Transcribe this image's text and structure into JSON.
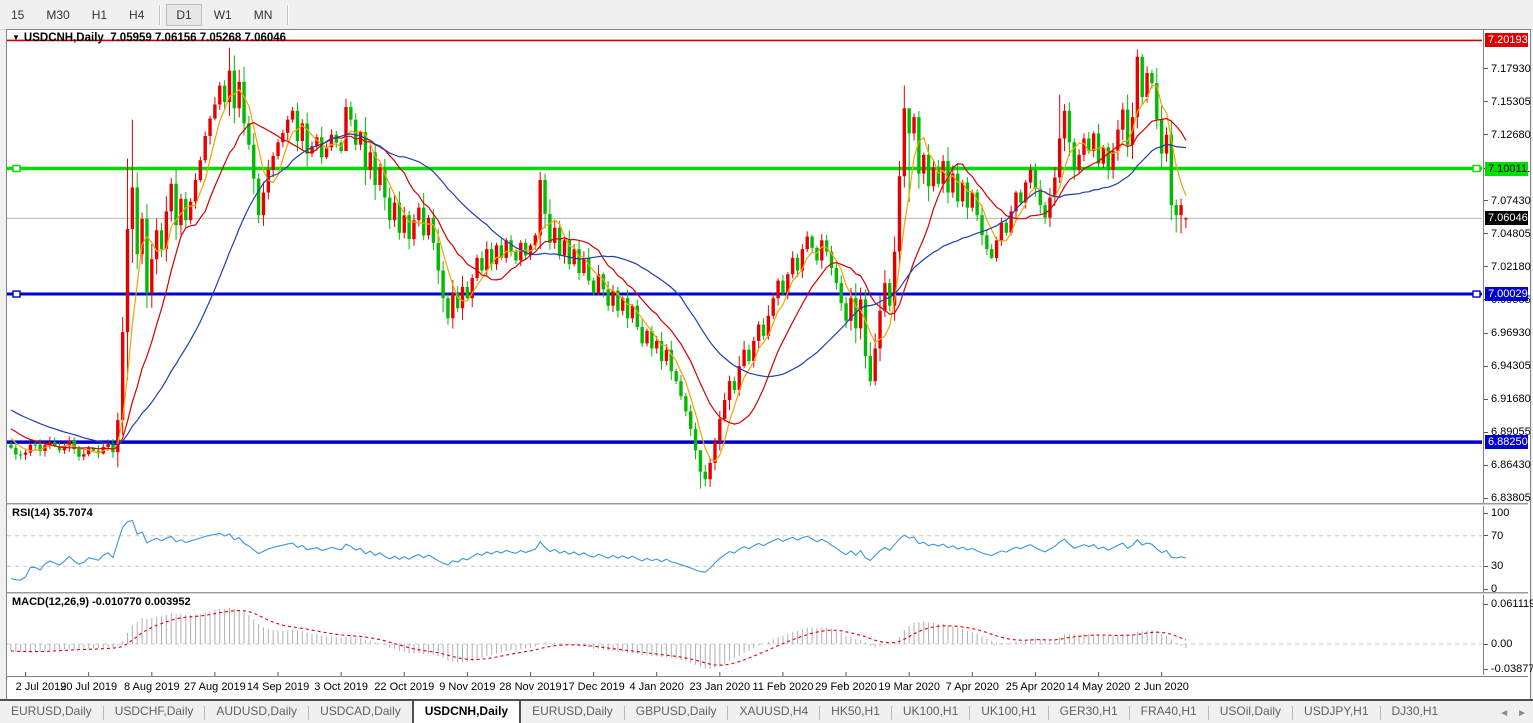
{
  "toolbar": {
    "timeframe_groups": [
      [
        "15",
        "M30",
        "H1",
        "H4"
      ],
      [
        "D1",
        "W1",
        "MN"
      ]
    ],
    "active_timeframe": "D1"
  },
  "title": {
    "symbol": "USDCNH,Daily",
    "ohlc": "7.05959 7.06156 7.05268 7.06046"
  },
  "price_axis": {
    "ticks": [
      "7.17930",
      "7.15305",
      "7.12680",
      "7.10011",
      "7.07430",
      "7.04805",
      "7.02180",
      "6.99555",
      "6.96930",
      "6.94305",
      "6.91680",
      "6.89055",
      "6.86430",
      "6.83805"
    ],
    "boxes": [
      {
        "value": "7.20193",
        "bg": "#dd0000",
        "fg": "#ffffff"
      },
      {
        "value": "7.10011",
        "bg": "#00dd00",
        "fg": "#000000"
      },
      {
        "value": "7.06046",
        "bg": "#000000",
        "fg": "#ffffff"
      },
      {
        "value": "7.00029",
        "bg": "#0000cc",
        "fg": "#ffffff"
      },
      {
        "value": "6.88250",
        "bg": "#0000cc",
        "fg": "#ffffff"
      }
    ]
  },
  "indicators": {
    "rsi": {
      "label": "RSI(14)",
      "value": "35.7074",
      "ticks": [
        "100",
        "70",
        "30",
        "0"
      ]
    },
    "macd": {
      "label": "MACD(12,26,9)",
      "values": "-0.010770 0.003952",
      "ticks": [
        "0.061119",
        "0.00",
        "-0.038777"
      ]
    }
  },
  "time_axis": {
    "labels": [
      "2 Jul 2019",
      "20 Jul 2019",
      "8 Aug 2019",
      "27 Aug 2019",
      "14 Sep 2019",
      "3 Oct 2019",
      "22 Oct 2019",
      "9 Nov 2019",
      "28 Nov 2019",
      "17 Dec 2019",
      "4 Jan 2020",
      "23 Jan 2020",
      "11 Feb 2020",
      "29 Feb 2020",
      "19 Mar 2020",
      "7 Apr 2020",
      "25 Apr 2020",
      "14 May 2020",
      "2 Jun 2020"
    ]
  },
  "tabs": {
    "items": [
      "EURUSD,Daily",
      "USDCHF,Daily",
      "AUDUSD,Daily",
      "USDCAD,Daily",
      "USDCNH,Daily",
      "EURUSD,Daily",
      "GBPUSD,Daily",
      "XAUUSD,H4",
      "HK50,H1",
      "UK100,H1",
      "UK100,H1",
      "GER30,H1",
      "FRA40,H1",
      "USOil,Daily",
      "USDJPY,H1",
      "DJ30,H1"
    ],
    "active_index": 4,
    "scroll_left": "◄",
    "scroll_right": "►"
  },
  "chart_data": {
    "type": "candlestick",
    "symbol": "USDCNH",
    "timeframe": "Daily",
    "current_price": 7.06046,
    "last_candle_ohlc": {
      "open": 7.05959,
      "high": 7.06156,
      "low": 7.05268,
      "close": 7.06046
    },
    "ylim": [
      6.8357,
      7.2047
    ],
    "num_candles": 243,
    "hlines": [
      {
        "price": 7.20193,
        "color": "#cc0000",
        "width": 1.6,
        "handles": false
      },
      {
        "price": 7.10011,
        "color": "#00dd00",
        "width": 3.5,
        "handles": true
      },
      {
        "price": 7.00029,
        "color": "#0000cc",
        "width": 3.0,
        "handles": true
      },
      {
        "price": 6.8825,
        "color": "#0000cc",
        "width": 3.5,
        "handles": false
      }
    ],
    "rsi_period": 14,
    "macd_params": [
      12,
      26,
      9
    ],
    "ma_periods": [
      5,
      13,
      30
    ],
    "rsi_range": [
      0,
      100
    ],
    "macd_range": [
      0.061119,
      0.0,
      -0.038777
    ],
    "close_anchors": [
      [
        0,
        6.878
      ],
      [
        2,
        6.8725
      ],
      [
        4,
        6.8805
      ],
      [
        6,
        6.8755
      ],
      [
        8,
        6.8825
      ],
      [
        10,
        6.876
      ],
      [
        12,
        6.8835
      ],
      [
        14,
        6.871
      ],
      [
        16,
        6.8775
      ],
      [
        18,
        6.8735
      ],
      [
        20,
        6.8815
      ],
      [
        21,
        6.8745
      ],
      [
        22,
        6.9
      ],
      [
        23,
        6.97
      ],
      [
        24,
        7.052
      ],
      [
        25,
        7.085
      ],
      [
        26,
        7.032
      ],
      [
        27,
        7.06
      ],
      [
        28,
        7.001
      ],
      [
        29,
        7.028
      ],
      [
        30,
        7.051
      ],
      [
        31,
        7.036
      ],
      [
        32,
        7.066
      ],
      [
        33,
        7.088
      ],
      [
        34,
        7.055
      ],
      [
        35,
        7.076
      ],
      [
        36,
        7.059
      ],
      [
        38,
        7.091
      ],
      [
        40,
        7.126
      ],
      [
        42,
        7.151
      ],
      [
        43,
        7.166
      ],
      [
        44,
        7.153
      ],
      [
        45,
        7.178
      ],
      [
        46,
        7.148
      ],
      [
        47,
        7.169
      ],
      [
        48,
        7.136
      ],
      [
        49,
        7.119
      ],
      [
        50,
        7.092
      ],
      [
        51,
        7.063
      ],
      [
        52,
        7.081
      ],
      [
        53,
        7.099
      ],
      [
        55,
        7.121
      ],
      [
        57,
        7.139
      ],
      [
        58,
        7.146
      ],
      [
        59,
        7.122
      ],
      [
        60,
        7.136
      ],
      [
        61,
        7.112
      ],
      [
        63,
        7.125
      ],
      [
        64,
        7.109
      ],
      [
        66,
        7.127
      ],
      [
        68,
        7.114
      ],
      [
        69,
        7.149
      ],
      [
        70,
        7.139
      ],
      [
        71,
        7.119
      ],
      [
        72,
        7.129
      ],
      [
        73,
        7.099
      ],
      [
        74,
        7.113
      ],
      [
        75,
        7.087
      ],
      [
        76,
        7.101
      ],
      [
        77,
        7.077
      ],
      [
        78,
        7.059
      ],
      [
        79,
        7.073
      ],
      [
        80,
        7.049
      ],
      [
        81,
        7.063
      ],
      [
        82,
        7.044
      ],
      [
        83,
        7.059
      ],
      [
        84,
        7.069
      ],
      [
        85,
        7.047
      ],
      [
        86,
        7.061
      ],
      [
        87,
        7.041
      ],
      [
        88,
        7.019
      ],
      [
        89,
        6.997
      ],
      [
        90,
        6.981
      ],
      [
        91,
        7.001
      ],
      [
        92,
        6.989
      ],
      [
        93,
        7.006
      ],
      [
        94,
        6.997
      ],
      [
        95,
        7.013
      ],
      [
        96,
        7.029
      ],
      [
        97,
        7.019
      ],
      [
        98,
        7.036
      ],
      [
        99,
        7.024
      ],
      [
        100,
        7.039
      ],
      [
        101,
        7.029
      ],
      [
        102,
        7.043
      ],
      [
        103,
        7.034
      ],
      [
        104,
        7.027
      ],
      [
        105,
        7.041
      ],
      [
        106,
        7.031
      ],
      [
        107,
        7.039
      ],
      [
        108,
        7.047
      ],
      [
        109,
        7.091
      ],
      [
        110,
        7.064
      ],
      [
        111,
        7.041
      ],
      [
        112,
        7.053
      ],
      [
        113,
        7.031
      ],
      [
        114,
        7.043
      ],
      [
        115,
        7.024
      ],
      [
        116,
        7.036
      ],
      [
        117,
        7.017
      ],
      [
        118,
        7.029
      ],
      [
        119,
        7.011
      ],
      [
        120,
        7.001
      ],
      [
        121,
        7.016
      ],
      [
        122,
        7.004
      ],
      [
        123,
        6.991
      ],
      [
        124,
        7.003
      ],
      [
        125,
        6.987
      ],
      [
        126,
        6.997
      ],
      [
        127,
        6.981
      ],
      [
        128,
        6.991
      ],
      [
        129,
        6.974
      ],
      [
        130,
        6.961
      ],
      [
        131,
        6.971
      ],
      [
        132,
        6.957
      ],
      [
        133,
        6.963
      ],
      [
        134,
        6.947
      ],
      [
        135,
        6.956
      ],
      [
        136,
        6.939
      ],
      [
        137,
        6.931
      ],
      [
        138,
        6.919
      ],
      [
        139,
        6.907
      ],
      [
        140,
        6.893
      ],
      [
        141,
        6.876
      ],
      [
        142,
        6.859
      ],
      [
        143,
        6.853
      ],
      [
        144,
        6.866
      ],
      [
        145,
        6.883
      ],
      [
        146,
        6.901
      ],
      [
        147,
        6.916
      ],
      [
        148,
        6.931
      ],
      [
        149,
        6.924
      ],
      [
        150,
        6.943
      ],
      [
        151,
        6.956
      ],
      [
        152,
        6.947
      ],
      [
        153,
        6.963
      ],
      [
        154,
        6.976
      ],
      [
        155,
        6.967
      ],
      [
        156,
        6.983
      ],
      [
        157,
        6.997
      ],
      [
        158,
        7.011
      ],
      [
        159,
        7.001
      ],
      [
        160,
        7.016
      ],
      [
        161,
        7.029
      ],
      [
        162,
        7.019
      ],
      [
        163,
        7.036
      ],
      [
        164,
        7.046
      ],
      [
        165,
        7.037
      ],
      [
        166,
        7.027
      ],
      [
        167,
        7.043
      ],
      [
        168,
        7.034
      ],
      [
        169,
        7.021
      ],
      [
        170,
        7.009
      ],
      [
        171,
        6.993
      ],
      [
        172,
        6.979
      ],
      [
        173,
        6.997
      ],
      [
        174,
        6.973
      ],
      [
        175,
        6.996
      ],
      [
        176,
        6.951
      ],
      [
        177,
        6.931
      ],
      [
        178,
        6.957
      ],
      [
        179,
        6.987
      ],
      [
        180,
        7.009
      ],
      [
        181,
        6.991
      ],
      [
        182,
        7.034
      ],
      [
        183,
        7.094
      ],
      [
        184,
        7.148
      ],
      [
        185,
        7.128
      ],
      [
        186,
        7.141
      ],
      [
        187,
        7.096
      ],
      [
        188,
        7.111
      ],
      [
        189,
        7.086
      ],
      [
        190,
        7.101
      ],
      [
        191,
        7.088
      ],
      [
        192,
        7.106
      ],
      [
        193,
        7.081
      ],
      [
        194,
        7.096
      ],
      [
        195,
        7.074
      ],
      [
        196,
        7.089
      ],
      [
        197,
        7.069
      ],
      [
        198,
        7.081
      ],
      [
        199,
        7.063
      ],
      [
        200,
        7.047
      ],
      [
        201,
        7.036
      ],
      [
        202,
        7.029
      ],
      [
        203,
        7.043
      ],
      [
        204,
        7.057
      ],
      [
        205,
        7.049
      ],
      [
        206,
        7.066
      ],
      [
        207,
        7.081
      ],
      [
        208,
        7.073
      ],
      [
        209,
        7.089
      ],
      [
        210,
        7.099
      ],
      [
        211,
        7.084
      ],
      [
        212,
        7.071
      ],
      [
        213,
        7.061
      ],
      [
        214,
        7.077
      ],
      [
        215,
        7.093
      ],
      [
        216,
        7.124
      ],
      [
        217,
        7.146
      ],
      [
        218,
        7.121
      ],
      [
        219,
        7.099
      ],
      [
        220,
        7.111
      ],
      [
        221,
        7.124
      ],
      [
        222,
        7.114
      ],
      [
        223,
        7.128
      ],
      [
        224,
        7.104
      ],
      [
        225,
        7.117
      ],
      [
        226,
        7.099
      ],
      [
        227,
        7.114
      ],
      [
        228,
        7.131
      ],
      [
        229,
        7.147
      ],
      [
        230,
        7.119
      ],
      [
        231,
        7.141
      ],
      [
        232,
        7.189
      ],
      [
        233,
        7.157
      ],
      [
        234,
        7.176
      ],
      [
        235,
        7.168
      ],
      [
        236,
        7.139
      ],
      [
        237,
        7.112
      ],
      [
        238,
        7.127
      ],
      [
        239,
        7.071
      ],
      [
        240,
        7.063
      ],
      [
        241,
        7.071
      ],
      [
        242,
        7.06046
      ]
    ],
    "wick_overrides": {
      "24": [
        7.108,
        6.932
      ],
      "25": [
        7.139,
        7.025
      ],
      "45": [
        7.1962,
        7.142
      ],
      "69": [
        7.1555,
        7.115
      ],
      "109": [
        7.0975,
        7.036
      ],
      "142": [
        6.868,
        6.8455
      ],
      "143": [
        6.8645,
        6.8472
      ],
      "184": [
        7.1662,
        7.085
      ],
      "185": [
        7.1472,
        7.0735
      ],
      "216": [
        7.1588,
        7.0885
      ],
      "232": [
        7.1948,
        7.132
      ],
      "233": [
        7.1915,
        7.1505
      ],
      "240": [
        7.0755,
        7.0492
      ],
      "241": [
        7.0762,
        7.0485
      ]
    },
    "colors": {
      "up": "#e60000",
      "down": "#00bb00",
      "ma_fast": "#f5a300",
      "ma_mid": "#d40000",
      "ma_slow": "#1f3fae",
      "rsi": "#3a96dd",
      "rsi_levels": "#c8c8c8",
      "macd_hist": "#b0b0b0",
      "macd_signal": "#e00000",
      "current_line": "#b4b4b4"
    },
    "date_tick_first_index": 3,
    "date_tick_step": 13
  }
}
